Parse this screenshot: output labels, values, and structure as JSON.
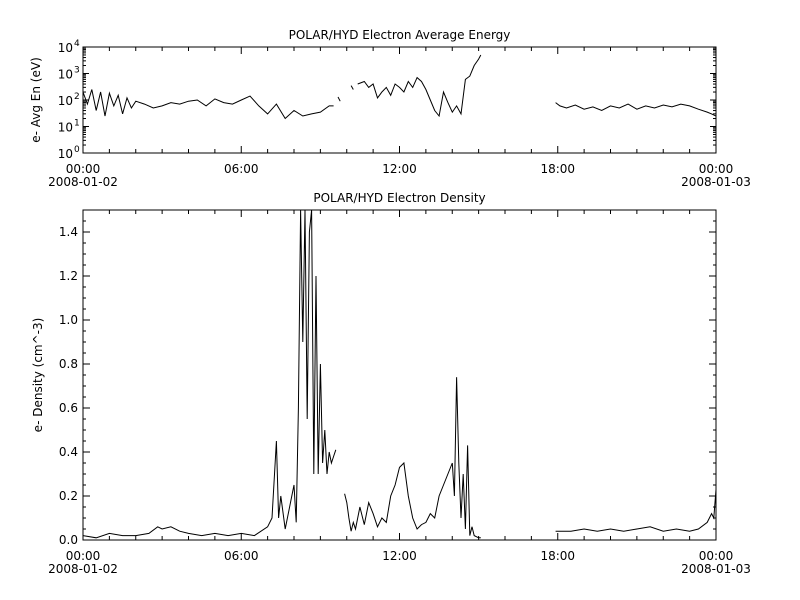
{
  "chart_data": [
    {
      "type": "line",
      "title": "POLAR/HYD  Electron Average Energy",
      "ylabel": "e- Avg En (eV)",
      "yscale": "log",
      "ylim": [
        1,
        10000
      ],
      "y_ticks": [
        {
          "value": 1,
          "base": "10",
          "exp": "0"
        },
        {
          "value": 10,
          "base": "10",
          "exp": "1"
        },
        {
          "value": 100,
          "base": "10",
          "exp": "2"
        },
        {
          "value": 1000,
          "base": "10",
          "exp": "3"
        },
        {
          "value": 10000,
          "base": "10",
          "exp": "4"
        }
      ],
      "xlim": [
        "2008-01-02 00:00",
        "2008-01-03 00:00"
      ],
      "x_ticks": [
        {
          "time": "2008-01-02 00:00",
          "label": "00:00",
          "date": "2008-01-02"
        },
        {
          "time": "2008-01-02 06:00",
          "label": "06:00",
          "date": ""
        },
        {
          "time": "2008-01-02 12:00",
          "label": "12:00",
          "date": ""
        },
        {
          "time": "2008-01-02 18:00",
          "label": "18:00",
          "date": ""
        },
        {
          "time": "2008-01-03 00:00",
          "label": "00:00",
          "date": "2008-01-03"
        }
      ],
      "grid": false,
      "series": [
        {
          "segments": [
            {
              "x": [
                "00:00",
                "00:10",
                "00:20",
                "00:30",
                "00:40",
                "00:50",
                "01:00",
                "01:10",
                "01:20",
                "01:30",
                "01:40",
                "01:50",
                "02:00",
                "02:20",
                "02:40",
                "03:00",
                "03:20",
                "03:40",
                "04:00",
                "04:20",
                "04:40",
                "05:00",
                "05:20",
                "05:40",
                "06:00",
                "06:20",
                "06:40",
                "07:00",
                "07:20",
                "07:40",
                "08:00",
                "08:20",
                "08:40",
                "09:00",
                "09:20",
                "09:30"
              ],
              "y": [
                200,
                70,
                250,
                40,
                200,
                25,
                180,
                60,
                150,
                30,
                120,
                50,
                90,
                70,
                50,
                60,
                80,
                70,
                90,
                100,
                60,
                110,
                80,
                70,
                100,
                140,
                60,
                30,
                70,
                20,
                40,
                25,
                30,
                35,
                60,
                60
              ]
            },
            {
              "x": [
                "09:40",
                "09:45"
              ],
              "y": [
                130,
                90
              ]
            },
            {
              "x": [
                "10:10",
                "10:15"
              ],
              "y": [
                350,
                250
              ]
            },
            {
              "x": [
                "10:25",
                "10:40",
                "10:50",
                "11:00",
                "11:10",
                "11:20",
                "11:30",
                "11:40",
                "11:50",
                "12:00",
                "12:10",
                "12:20",
                "12:30",
                "12:40",
                "12:50",
                "13:00",
                "13:10",
                "13:20",
                "13:30",
                "13:40",
                "13:50",
                "14:00",
                "14:10",
                "14:20",
                "14:30",
                "14:40",
                "14:50",
                "15:00",
                "15:05"
              ],
              "y": [
                400,
                500,
                300,
                400,
                120,
                200,
                300,
                150,
                400,
                300,
                200,
                500,
                300,
                700,
                500,
                250,
                100,
                40,
                25,
                200,
                80,
                35,
                60,
                30,
                600,
                800,
                2000,
                3500,
                5000
              ]
            },
            {
              "x": [
                "17:55",
                "18:05",
                "18:20",
                "18:40",
                "19:00",
                "19:20",
                "19:40",
                "20:00",
                "20:20",
                "20:40",
                "21:00",
                "21:20",
                "21:40",
                "22:00",
                "22:20",
                "22:40",
                "23:00",
                "23:20",
                "23:40",
                "23:50",
                "24:00"
              ],
              "y": [
                80,
                60,
                50,
                65,
                45,
                55,
                40,
                60,
                50,
                70,
                45,
                60,
                50,
                65,
                55,
                70,
                60,
                45,
                35,
                30,
                25
              ]
            }
          ]
        }
      ]
    },
    {
      "type": "line",
      "title": "POLAR/HYD  Electron Density",
      "ylabel": "e- Density (cm^-3)",
      "ylim": [
        0,
        1.5
      ],
      "y_ticks": [
        "0.0",
        "0.2",
        "0.4",
        "0.6",
        "0.8",
        "1.0",
        "1.2",
        "1.4"
      ],
      "xlim": [
        "2008-01-02 00:00",
        "2008-01-03 00:00"
      ],
      "x_ticks": [
        {
          "time": "2008-01-02 00:00",
          "label": "00:00",
          "date": "2008-01-02"
        },
        {
          "time": "2008-01-02 06:00",
          "label": "06:00",
          "date": ""
        },
        {
          "time": "2008-01-02 12:00",
          "label": "12:00",
          "date": ""
        },
        {
          "time": "2008-01-02 18:00",
          "label": "18:00",
          "date": ""
        },
        {
          "time": "2008-01-03 00:00",
          "label": "00:00",
          "date": "2008-01-03"
        }
      ],
      "grid": false,
      "series": [
        {
          "segments": [
            {
              "x": [
                "00:00",
                "00:30",
                "01:00",
                "01:30",
                "02:00",
                "02:30",
                "02:50",
                "03:00",
                "03:20",
                "03:40",
                "04:00",
                "04:30",
                "05:00",
                "05:30",
                "06:00",
                "06:30",
                "07:00",
                "07:10",
                "07:20",
                "07:25",
                "07:30",
                "07:40",
                "07:50",
                "08:00",
                "08:05",
                "08:10",
                "08:15",
                "08:20",
                "08:25",
                "08:30",
                "08:35",
                "08:40",
                "08:45",
                "08:50",
                "08:55",
                "09:00",
                "09:05",
                "09:10",
                "09:15",
                "09:20",
                "09:25",
                "09:30",
                "09:35"
              ],
              "y": [
                0.02,
                0.01,
                0.03,
                0.02,
                0.02,
                0.03,
                0.06,
                0.05,
                0.06,
                0.04,
                0.03,
                0.02,
                0.03,
                0.02,
                0.03,
                0.02,
                0.06,
                0.1,
                0.45,
                0.1,
                0.2,
                0.05,
                0.15,
                0.25,
                0.08,
                0.6,
                1.5,
                0.9,
                1.5,
                0.55,
                1.4,
                1.5,
                0.3,
                1.2,
                0.3,
                0.8,
                0.35,
                0.5,
                0.3,
                0.4,
                0.35,
                0.38,
                0.41
              ]
            },
            {
              "x": [
                "09:55",
                "10:00",
                "10:05",
                "10:10",
                "10:15",
                "10:20",
                "10:30",
                "10:40",
                "10:50",
                "11:00",
                "11:10",
                "11:20",
                "11:30",
                "11:40",
                "11:50",
                "12:00",
                "12:10",
                "12:20",
                "12:30",
                "12:40",
                "12:50",
                "13:00",
                "13:10",
                "13:20",
                "13:30",
                "13:40",
                "13:50",
                "14:00",
                "14:05",
                "14:10",
                "14:15",
                "14:20",
                "14:25",
                "14:30",
                "14:35",
                "14:40",
                "14:45",
                "14:50",
                "15:00",
                "15:05"
              ],
              "y": [
                0.21,
                0.17,
                0.1,
                0.04,
                0.08,
                0.05,
                0.15,
                0.07,
                0.17,
                0.12,
                0.06,
                0.1,
                0.08,
                0.2,
                0.25,
                0.33,
                0.35,
                0.2,
                0.1,
                0.05,
                0.07,
                0.08,
                0.12,
                0.1,
                0.2,
                0.25,
                0.3,
                0.35,
                0.2,
                0.74,
                0.35,
                0.1,
                0.3,
                0.05,
                0.43,
                0.02,
                0.06,
                0.02,
                0.01,
                0.01
              ]
            },
            {
              "x": [
                "17:55",
                "18:30",
                "19:00",
                "19:30",
                "20:00",
                "20:30",
                "21:00",
                "21:30",
                "22:00",
                "22:30",
                "23:00",
                "23:20",
                "23:40",
                "23:50",
                "23:55",
                "24:00"
              ],
              "y": [
                0.04,
                0.04,
                0.05,
                0.04,
                0.05,
                0.04,
                0.05,
                0.06,
                0.04,
                0.05,
                0.04,
                0.05,
                0.08,
                0.12,
                0.1,
                0.23
              ]
            }
          ]
        }
      ]
    }
  ]
}
